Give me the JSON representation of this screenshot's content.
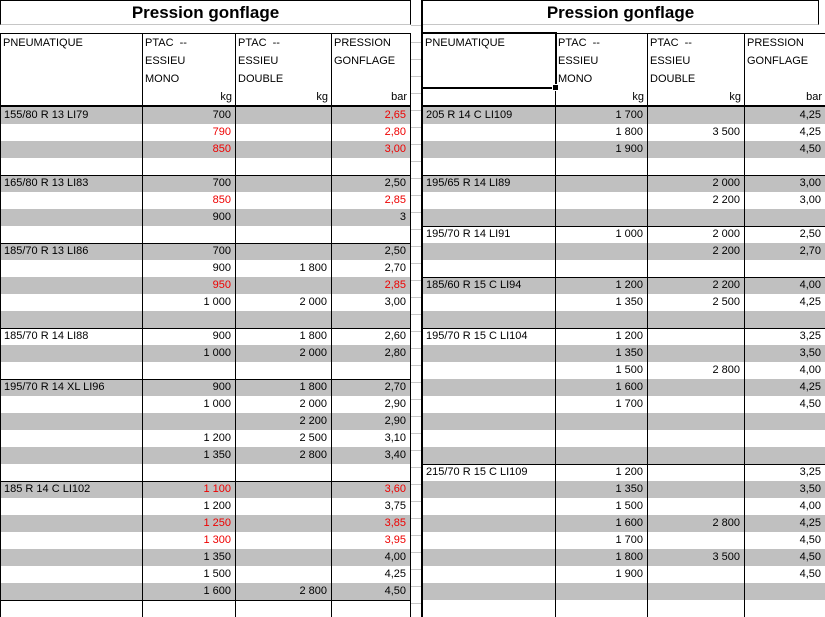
{
  "colors": {
    "stripe_gray": "#c0c0c0",
    "highlight_red": "#ee0000",
    "border_black": "#000000",
    "gridline_gray": "#c6c6c6"
  },
  "tables": {
    "left": {
      "title": "Pression gonflage",
      "headers": {
        "pneumatique": "PNEUMATIQUE",
        "ptac_mono": "PTAC  --\nESSIEU\nMONO",
        "ptac_double": "PTAC  --\nESSIEU\nDOUBLE",
        "pression": "PRESSION\nGONFLAGE"
      },
      "units": {
        "mono": "kg",
        "double": "kg",
        "pression": "bar"
      },
      "rows": [
        {
          "n": "155/80 R 13 LI79",
          "m": "700",
          "p": "2,65",
          "red": [
            "p"
          ]
        },
        {
          "m": "790",
          "p": "2,80",
          "red": [
            "m",
            "p"
          ]
        },
        {
          "m": "850",
          "p": "3,00",
          "red": [
            "m",
            "p"
          ]
        },
        {},
        {
          "top": true,
          "n": "165/80 R 13 LI83",
          "m": "700",
          "p": "2,50"
        },
        {
          "m": "850",
          "p": "2,85",
          "red": [
            "m",
            "p"
          ]
        },
        {
          "m": "900",
          "p": "3"
        },
        {},
        {
          "top": true,
          "n": "185/70 R 13 LI86",
          "m": "700",
          "p": "2,50"
        },
        {
          "m": "900",
          "d": "1 800",
          "p": "2,70"
        },
        {
          "m": "950",
          "p": "2,85",
          "red": [
            "m",
            "p"
          ]
        },
        {
          "m": "1 000",
          "d": "2 000",
          "p": "3,00"
        },
        {},
        {
          "top": true,
          "n": "185/70 R 14 LI88",
          "m": "900",
          "d": "1 800",
          "p": "2,60"
        },
        {
          "m": "1 000",
          "d": "2 000",
          "p": "2,80"
        },
        {},
        {
          "top": true,
          "n": "195/70 R 14 XL LI96",
          "m": "900",
          "d": "1 800",
          "p": "2,70"
        },
        {
          "m": "1 000",
          "d": "2 000",
          "p": "2,90"
        },
        {
          "d": "2 200",
          "p": "2,90"
        },
        {
          "m": "1 200",
          "d": "2 500",
          "p": "3,10"
        },
        {
          "m": "1 350",
          "d": "2 800",
          "p": "3,40"
        },
        {},
        {
          "top": true,
          "n": "185 R 14 C LI102",
          "m": "1 100",
          "p": "3,60",
          "red": [
            "m",
            "p"
          ]
        },
        {
          "m": "1 200",
          "p": "3,75"
        },
        {
          "m": "1 250",
          "p": "3,85",
          "red": [
            "m",
            "p"
          ]
        },
        {
          "m": "1 300",
          "p": "3,95",
          "red": [
            "m",
            "p"
          ]
        },
        {
          "m": "1 350",
          "p": "4,00"
        },
        {
          "m": "1 500",
          "p": "4,25"
        },
        {
          "m": "1 600",
          "d": "2 800",
          "p": "4,50"
        },
        {
          "top": true
        }
      ]
    },
    "right": {
      "title": "Pression gonflage",
      "headers": {
        "pneumatique": "PNEUMATIQUE",
        "ptac_mono": "PTAC  --\nESSIEU\nMONO",
        "ptac_double": "PTAC  --\nESSIEU\nDOUBLE",
        "pression": "PRESSION\nGONFLAGE"
      },
      "units": {
        "mono": "kg",
        "double": "kg",
        "pression": "bar"
      },
      "rows": [
        {
          "n": "205 R 14 C LI109",
          "m": "1 700",
          "p": "4,25"
        },
        {
          "m": "1 800",
          "d": "3 500",
          "p": "4,25"
        },
        {
          "m": "1 900",
          "p": "4,50"
        },
        {},
        {
          "top": true,
          "n": "195/65 R 14 LI89",
          "d": "2 000",
          "p": "3,00"
        },
        {
          "d": "2 200",
          "p": "3,00"
        },
        {},
        {
          "top": true,
          "n": "195/70 R 14 LI91",
          "m": "1 000",
          "d": "2 000",
          "p": "2,50"
        },
        {
          "d": "2 200",
          "p": "2,70"
        },
        {},
        {
          "top": true,
          "n": "185/60 R 15 C LI94",
          "m": "1 200",
          "d": "2 200",
          "p": "4,00"
        },
        {
          "m": "1 350",
          "d": "2 500",
          "p": "4,25"
        },
        {},
        {
          "top": true,
          "n": "195/70 R 15 C LI104",
          "m": "1 200",
          "p": "3,25"
        },
        {
          "m": "1 350",
          "p": "3,50"
        },
        {
          "m": "1 500",
          "d": "2 800",
          "p": "4,00"
        },
        {
          "m": "1 600",
          "p": "4,25"
        },
        {
          "m": "1 700",
          "p": "4,50"
        },
        {},
        {},
        {},
        {
          "top": true,
          "n": "215/70 R 15 C LI109",
          "m": "1 200",
          "p": "3,25"
        },
        {
          "m": "1 350",
          "p": "3,50"
        },
        {
          "m": "1 500",
          "p": "4,00"
        },
        {
          "m": "1 600",
          "d": "2 800",
          "p": "4,25"
        },
        {
          "m": "1 700",
          "p": "4,50"
        },
        {
          "m": "1 800",
          "d": "3 500",
          "p": "4,50"
        },
        {
          "m": "1 900",
          "p": "4,50"
        },
        {},
        {}
      ]
    }
  }
}
